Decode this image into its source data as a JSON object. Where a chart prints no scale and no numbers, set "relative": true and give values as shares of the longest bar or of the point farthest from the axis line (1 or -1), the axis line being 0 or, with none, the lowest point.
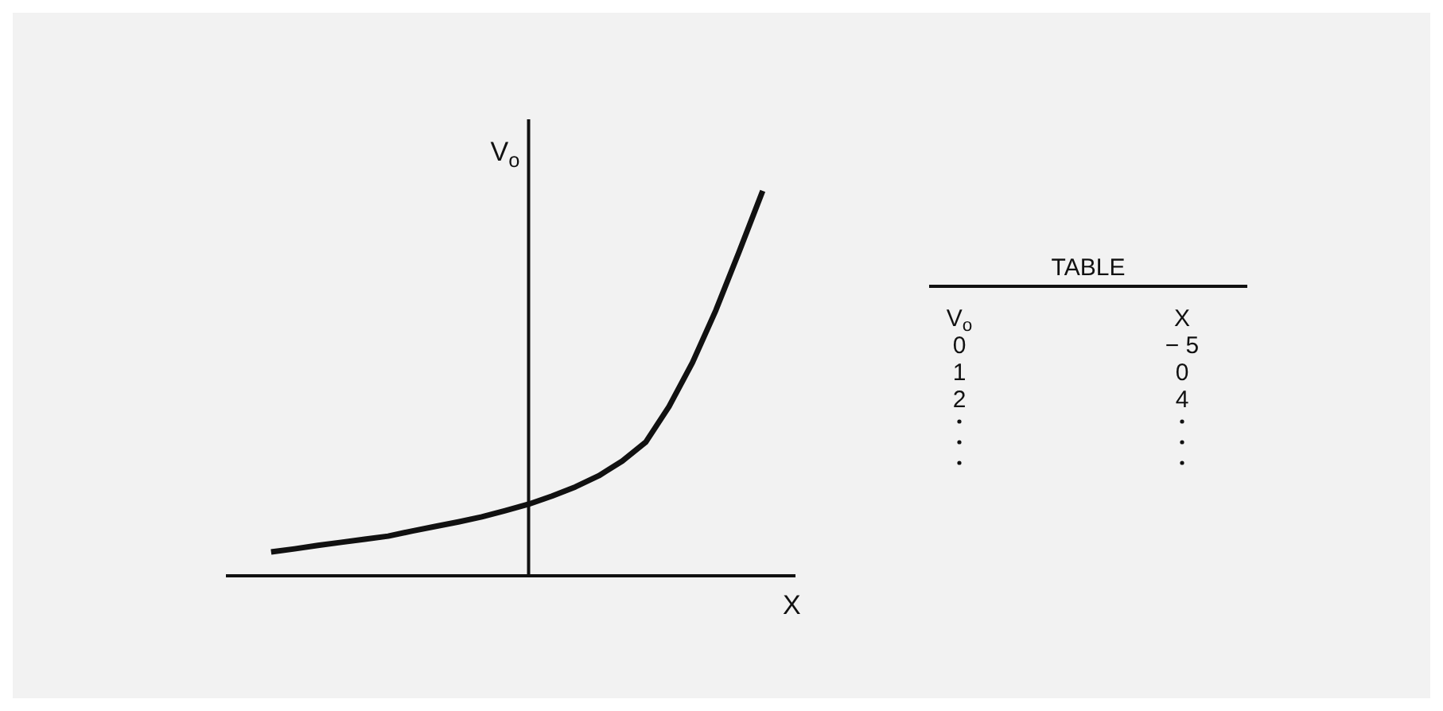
{
  "chart_data": [
    {
      "type": "line",
      "relative": true,
      "xlabel": "X",
      "ylabel": "V$_{o}$",
      "categories": [
        null,
        null,
        null,
        null,
        null,
        null,
        null,
        null,
        null,
        null,
        null,
        null,
        null,
        null,
        null,
        null,
        null,
        null,
        null,
        null,
        null,
        null
      ],
      "series": [
        {
          "color": "#111111",
          "values": [
            0.062,
            0.07,
            0.079,
            0.087,
            0.095,
            0.103,
            0.116,
            0.128,
            0.14,
            0.153,
            0.169,
            0.186,
            0.207,
            0.231,
            0.26,
            0.298,
            0.347,
            0.44,
            0.554,
            0.69,
            0.843,
            1
          ]
        }
      ],
      "marker": "none",
      "line_style": "solid"
    },
    {
      "type": "other",
      "title": "TABLE",
      "annotations": [
        "V$_{o}$",
        "X",
        "0",
        "− 5",
        "1",
        "0",
        "2",
        "4"
      ]
    }
  ]
}
